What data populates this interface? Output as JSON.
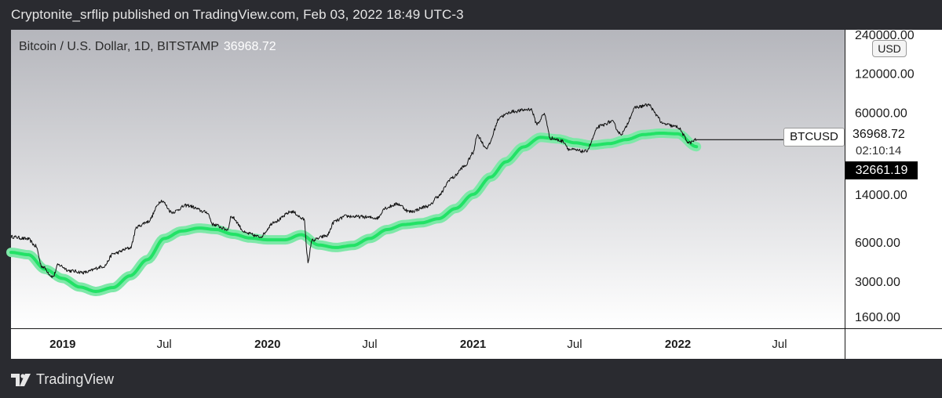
{
  "header": {
    "publish_line": "Cryptonite_srflip published on TradingView.com, Feb 03, 2022 18:49 UTC-3"
  },
  "legend": {
    "symbol": "Bitcoin / U.S. Dollar, 1D, BITSTAMP",
    "last_price": "36968.72"
  },
  "price_scale": {
    "currency": "USD",
    "ticks": [
      "240000.00",
      "120000.00",
      "60000.00",
      "14000.00",
      "6000.00",
      "3000.00",
      "1600.00"
    ]
  },
  "time_scale": {
    "labels": [
      {
        "text": "2019",
        "date": "2019-01-01",
        "year": true
      },
      {
        "text": "Jul",
        "date": "2019-07-01",
        "year": false
      },
      {
        "text": "2020",
        "date": "2020-01-01",
        "year": true
      },
      {
        "text": "Jul",
        "date": "2020-07-01",
        "year": false
      },
      {
        "text": "2021",
        "date": "2021-01-01",
        "year": true
      },
      {
        "text": "Jul",
        "date": "2021-07-01",
        "year": false
      },
      {
        "text": "2022",
        "date": "2022-01-01",
        "year": true
      },
      {
        "text": "Jul",
        "date": "2022-07-01",
        "year": false
      }
    ]
  },
  "markers": {
    "ticker": "BTCUSD",
    "last_price": "36968.72",
    "countdown": "02:10:14",
    "ma_price": "32661.19"
  },
  "brand": {
    "name": "TradingView"
  },
  "colors": {
    "price_line": "#111111",
    "ma_band": "#7ee8a8",
    "ma_line": "#22e266",
    "background_top": "#b5b6bc",
    "background_bottom": "#ffffff"
  },
  "chart_data": {
    "type": "line",
    "y_scale": "log",
    "ylim": [
      1300,
      260000
    ],
    "xlim": [
      "2018-10-01",
      "2022-10-25"
    ],
    "series": [
      {
        "role": "price",
        "points": [
          [
            "2018-10-01",
            6600
          ],
          [
            "2018-10-31",
            6350
          ],
          [
            "2018-11-14",
            5600
          ],
          [
            "2018-11-25",
            3900
          ],
          [
            "2018-12-15",
            3250
          ],
          [
            "2018-12-24",
            4000
          ],
          [
            "2019-01-15",
            3600
          ],
          [
            "2019-02-08",
            3500
          ],
          [
            "2019-03-15",
            3900
          ],
          [
            "2019-04-02",
            4900
          ],
          [
            "2019-05-01",
            5400
          ],
          [
            "2019-05-14",
            7900
          ],
          [
            "2019-06-01",
            8600
          ],
          [
            "2019-06-26",
            12500
          ],
          [
            "2019-07-15",
            10200
          ],
          [
            "2019-08-10",
            11500
          ],
          [
            "2019-09-15",
            10200
          ],
          [
            "2019-09-26",
            8200
          ],
          [
            "2019-10-22",
            7500
          ],
          [
            "2019-10-28",
            9400
          ],
          [
            "2019-11-25",
            7000
          ],
          [
            "2019-12-18",
            6600
          ],
          [
            "2020-01-15",
            8700
          ],
          [
            "2020-02-13",
            10300
          ],
          [
            "2020-03-06",
            9000
          ],
          [
            "2020-03-12",
            4800
          ],
          [
            "2020-03-13",
            4100
          ],
          [
            "2020-03-20",
            6200
          ],
          [
            "2020-04-15",
            6700
          ],
          [
            "2020-04-30",
            8700
          ],
          [
            "2020-05-20",
            9500
          ],
          [
            "2020-06-15",
            9400
          ],
          [
            "2020-07-15",
            9200
          ],
          [
            "2020-07-28",
            11000
          ],
          [
            "2020-08-20",
            11800
          ],
          [
            "2020-09-10",
            10300
          ],
          [
            "2020-10-15",
            11400
          ],
          [
            "2020-10-30",
            13500
          ],
          [
            "2020-11-25",
            18800
          ],
          [
            "2020-12-17",
            23000
          ],
          [
            "2021-01-01",
            29000
          ],
          [
            "2021-01-08",
            40000
          ],
          [
            "2021-01-25",
            32000
          ],
          [
            "2021-02-20",
            56000
          ],
          [
            "2021-03-13",
            61000
          ],
          [
            "2021-04-14",
            63500
          ],
          [
            "2021-04-25",
            49000
          ],
          [
            "2021-05-08",
            58000
          ],
          [
            "2021-05-19",
            38000
          ],
          [
            "2021-06-10",
            36000
          ],
          [
            "2021-06-22",
            31000
          ],
          [
            "2021-07-20",
            30000
          ],
          [
            "2021-08-15",
            47000
          ],
          [
            "2021-09-05",
            51000
          ],
          [
            "2021-09-21",
            41000
          ],
          [
            "2021-10-20",
            66000
          ],
          [
            "2021-11-10",
            68500
          ],
          [
            "2021-11-25",
            57000
          ],
          [
            "2021-12-04",
            49000
          ],
          [
            "2021-12-30",
            46500
          ],
          [
            "2022-01-22",
            35000
          ],
          [
            "2022-02-03",
            36968.72
          ]
        ]
      },
      {
        "role": "moving-average",
        "points": [
          [
            "2018-10-01",
            5000
          ],
          [
            "2018-11-01",
            4800
          ],
          [
            "2018-12-01",
            3700
          ],
          [
            "2019-01-01",
            3150
          ],
          [
            "2019-02-01",
            2700
          ],
          [
            "2019-03-01",
            2500
          ],
          [
            "2019-04-01",
            2680
          ],
          [
            "2019-05-01",
            3300
          ],
          [
            "2019-06-01",
            4400
          ],
          [
            "2019-07-01",
            6400
          ],
          [
            "2019-08-01",
            7300
          ],
          [
            "2019-09-01",
            7700
          ],
          [
            "2019-10-01",
            7500
          ],
          [
            "2019-11-01",
            6900
          ],
          [
            "2019-12-01",
            6450
          ],
          [
            "2020-01-01",
            6250
          ],
          [
            "2020-02-01",
            6250
          ],
          [
            "2020-03-01",
            6850
          ],
          [
            "2020-04-01",
            5700
          ],
          [
            "2020-05-01",
            5450
          ],
          [
            "2020-06-01",
            5650
          ],
          [
            "2020-07-01",
            6400
          ],
          [
            "2020-08-01",
            7500
          ],
          [
            "2020-09-01",
            8200
          ],
          [
            "2020-10-01",
            8450
          ],
          [
            "2020-11-01",
            9100
          ],
          [
            "2020-12-01",
            10900
          ],
          [
            "2021-01-01",
            14000
          ],
          [
            "2021-02-01",
            19000
          ],
          [
            "2021-03-01",
            25000
          ],
          [
            "2021-04-01",
            32500
          ],
          [
            "2021-05-01",
            38500
          ],
          [
            "2021-06-01",
            37500
          ],
          [
            "2021-07-01",
            35000
          ],
          [
            "2021-08-01",
            33500
          ],
          [
            "2021-09-01",
            34500
          ],
          [
            "2021-10-01",
            37000
          ],
          [
            "2021-11-01",
            40500
          ],
          [
            "2021-12-01",
            41500
          ],
          [
            "2022-01-01",
            41000
          ],
          [
            "2022-02-03",
            32661.19
          ]
        ]
      }
    ]
  }
}
